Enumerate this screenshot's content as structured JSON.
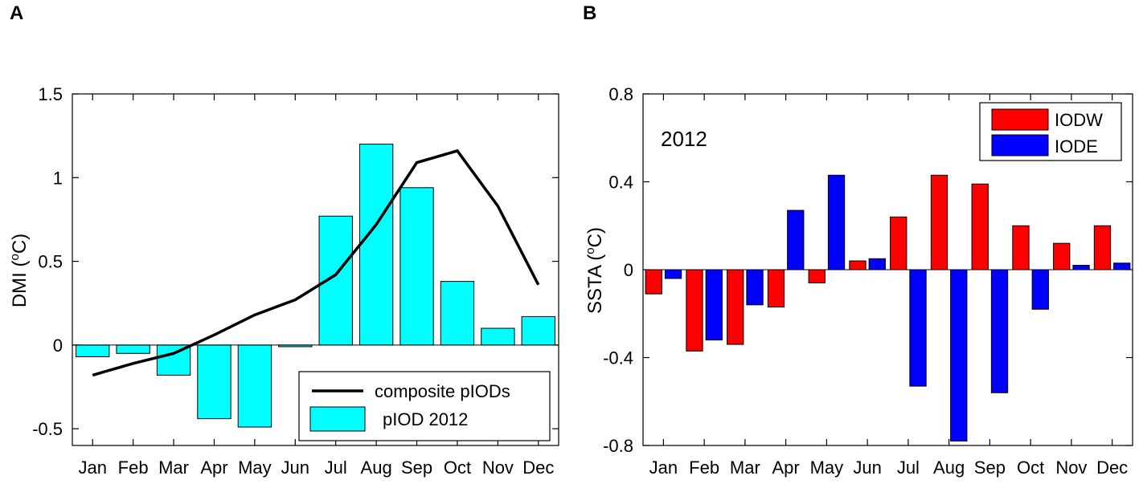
{
  "chart_data": [
    {
      "panel": "A",
      "type": "bar",
      "ylabel_main": "DMI (",
      "ylabel_sup": "o",
      "ylabel_unit": "C)",
      "ylim": [
        -0.6,
        1.5
      ],
      "yticks": [
        -0.5,
        0,
        0.5,
        1,
        1.5
      ],
      "ytick_labels": [
        "-0.5",
        "0",
        "0.5",
        "1",
        "1.5"
      ],
      "categories": [
        "Jan",
        "Feb",
        "Mar",
        "Apr",
        "May",
        "Jun",
        "Jul",
        "Aug",
        "Sep",
        "Oct",
        "Nov",
        "Dec"
      ],
      "series": [
        {
          "name": "pIOD 2012",
          "kind": "bar",
          "color": "#00ffff",
          "values": [
            -0.07,
            -0.05,
            -0.18,
            -0.44,
            -0.49,
            -0.01,
            0.77,
            1.2,
            0.94,
            0.38,
            0.1,
            0.17
          ]
        },
        {
          "name": "composite pIODs",
          "kind": "line",
          "color": "#000000",
          "values": [
            -0.18,
            -0.11,
            -0.05,
            0.06,
            0.18,
            0.27,
            0.42,
            0.72,
            1.09,
            1.16,
            0.83,
            0.36
          ]
        }
      ],
      "legend": [
        "composite pIODs",
        "pIOD 2012"
      ],
      "legend_position": "bottom-right"
    },
    {
      "panel": "B",
      "type": "bar",
      "ylabel_main": "SSTA (",
      "ylabel_sup": "o",
      "ylabel_unit": "C)",
      "annotation": "2012",
      "ylim": [
        -0.8,
        0.8
      ],
      "yticks": [
        -0.8,
        -0.4,
        0,
        0.4,
        0.8
      ],
      "ytick_labels": [
        "-0.8",
        "-0.4",
        "0",
        "0.4",
        "0.8"
      ],
      "categories": [
        "Jan",
        "Feb",
        "Mar",
        "Apr",
        "May",
        "Jun",
        "Jul",
        "Aug",
        "Sep",
        "Oct",
        "Nov",
        "Dec"
      ],
      "series": [
        {
          "name": "IODW",
          "color": "#ff0000",
          "values": [
            -0.11,
            -0.37,
            -0.34,
            -0.17,
            -0.06,
            0.04,
            0.24,
            0.43,
            0.39,
            0.2,
            0.12,
            0.2
          ]
        },
        {
          "name": "IODE",
          "color": "#0000ff",
          "values": [
            -0.04,
            -0.32,
            -0.16,
            0.27,
            0.43,
            0.05,
            -0.53,
            -0.78,
            -0.56,
            -0.18,
            0.02,
            0.03
          ]
        }
      ],
      "legend": [
        "IODW",
        "IODE"
      ],
      "legend_position": "top-right"
    }
  ]
}
